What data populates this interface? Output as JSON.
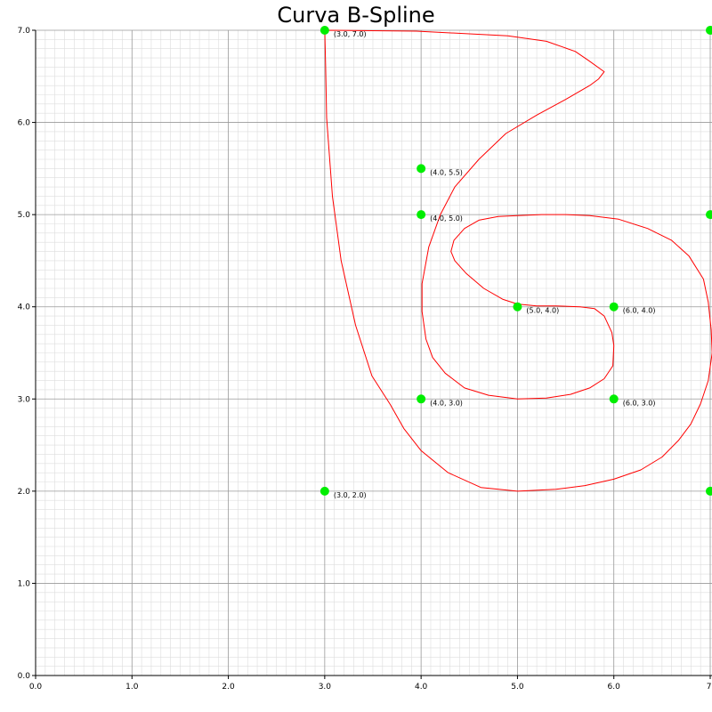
{
  "chart_data": {
    "type": "line",
    "title": "Curva B-Spline",
    "xlabel": "",
    "ylabel": "",
    "xlim": [
      0,
      7
    ],
    "ylim": [
      0,
      7
    ],
    "grid": true,
    "minor_grid": true,
    "x_ticks": [
      "0.0",
      "1.0",
      "2.0",
      "3.0",
      "4.0",
      "5.0",
      "6.0",
      "7."
    ],
    "y_ticks": [
      "0.0",
      "1.0",
      "2.0",
      "3.0",
      "4.0",
      "5.0",
      "6.0",
      "7.0"
    ],
    "colors": {
      "curve": "#ff0000",
      "control_points": "#00ee00",
      "major_grid": "#999999",
      "minor_grid": "#dddddd",
      "axis": "#000000"
    },
    "control_points": [
      {
        "x": 3.0,
        "y": 2.0,
        "label": "(3.0, 2.0)"
      },
      {
        "x": 3.0,
        "y": 7.0,
        "label": "(3.0, 7.0)"
      },
      {
        "x": 4.0,
        "y": 5.5,
        "label": "(4.0, 5.5)"
      },
      {
        "x": 4.0,
        "y": 5.0,
        "label": "(4.0, 5.0)"
      },
      {
        "x": 4.0,
        "y": 3.0,
        "label": "(4.0, 3.0)"
      },
      {
        "x": 5.0,
        "y": 4.0,
        "label": "(5.0, 4.0)"
      },
      {
        "x": 6.0,
        "y": 4.0,
        "label": "(6.0, 4.0)"
      },
      {
        "x": 6.0,
        "y": 3.0,
        "label": "(6.0, 3.0)"
      },
      {
        "x": 7.0,
        "y": 7.0,
        "label": ""
      },
      {
        "x": 7.0,
        "y": 5.0,
        "label": ""
      },
      {
        "x": 7.0,
        "y": 2.0,
        "label": ""
      }
    ],
    "series": [
      {
        "values": [
          [
            3.0,
            7.0
          ],
          [
            3.95,
            6.99
          ],
          [
            4.9,
            6.94
          ],
          [
            5.3,
            6.88
          ],
          [
            5.6,
            6.77
          ],
          [
            5.74,
            6.67
          ],
          [
            5.9,
            6.55
          ],
          [
            5.84,
            6.47
          ],
          [
            5.75,
            6.4
          ],
          [
            5.5,
            6.25
          ],
          [
            5.2,
            6.08
          ],
          [
            4.88,
            5.88
          ],
          [
            4.6,
            5.6
          ],
          [
            4.35,
            5.3
          ],
          [
            4.2,
            5.0
          ],
          [
            4.08,
            4.65
          ],
          [
            4.01,
            4.25
          ],
          [
            4.01,
            3.95
          ],
          [
            4.05,
            3.65
          ],
          [
            4.12,
            3.45
          ],
          [
            4.25,
            3.28
          ],
          [
            4.45,
            3.12
          ],
          [
            4.7,
            3.04
          ],
          [
            5.0,
            3.0
          ],
          [
            5.3,
            3.01
          ],
          [
            5.55,
            3.05
          ],
          [
            5.75,
            3.12
          ],
          [
            5.9,
            3.22
          ],
          [
            5.99,
            3.36
          ],
          [
            6.0,
            3.58
          ],
          [
            5.98,
            3.72
          ],
          [
            5.9,
            3.9
          ],
          [
            5.8,
            3.98
          ],
          [
            5.65,
            4.0
          ],
          [
            5.4,
            4.01
          ],
          [
            5.2,
            4.01
          ],
          [
            5.0,
            4.03
          ],
          [
            4.85,
            4.08
          ],
          [
            4.65,
            4.2
          ],
          [
            4.47,
            4.36
          ],
          [
            4.35,
            4.5
          ],
          [
            4.31,
            4.6
          ],
          [
            4.34,
            4.72
          ],
          [
            4.45,
            4.85
          ],
          [
            4.6,
            4.94
          ],
          [
            4.8,
            4.98
          ],
          [
            5.0,
            4.99
          ],
          [
            5.25,
            5.0
          ],
          [
            5.5,
            5.0
          ],
          [
            5.75,
            4.99
          ],
          [
            6.05,
            4.95
          ],
          [
            6.35,
            4.85
          ],
          [
            6.6,
            4.72
          ],
          [
            6.78,
            4.55
          ],
          [
            6.93,
            4.3
          ],
          [
            6.98,
            4.05
          ],
          [
            7.01,
            3.75
          ],
          [
            7.02,
            3.5
          ],
          [
            6.98,
            3.2
          ],
          [
            6.9,
            2.95
          ],
          [
            6.8,
            2.73
          ],
          [
            6.67,
            2.55
          ],
          [
            6.5,
            2.37
          ],
          [
            6.28,
            2.23
          ],
          [
            6.0,
            2.13
          ],
          [
            5.7,
            2.06
          ],
          [
            5.4,
            2.02
          ],
          [
            5.0,
            2.0
          ],
          [
            4.62,
            2.04
          ],
          [
            4.28,
            2.2
          ],
          [
            4.0,
            2.44
          ],
          [
            3.82,
            2.68
          ],
          [
            3.68,
            2.94
          ],
          [
            3.49,
            3.25
          ],
          [
            3.32,
            3.8
          ],
          [
            3.17,
            4.5
          ],
          [
            3.08,
            5.2
          ],
          [
            3.02,
            6.05
          ],
          [
            3.01,
            6.6
          ],
          [
            3.0,
            7.0
          ]
        ]
      }
    ]
  }
}
